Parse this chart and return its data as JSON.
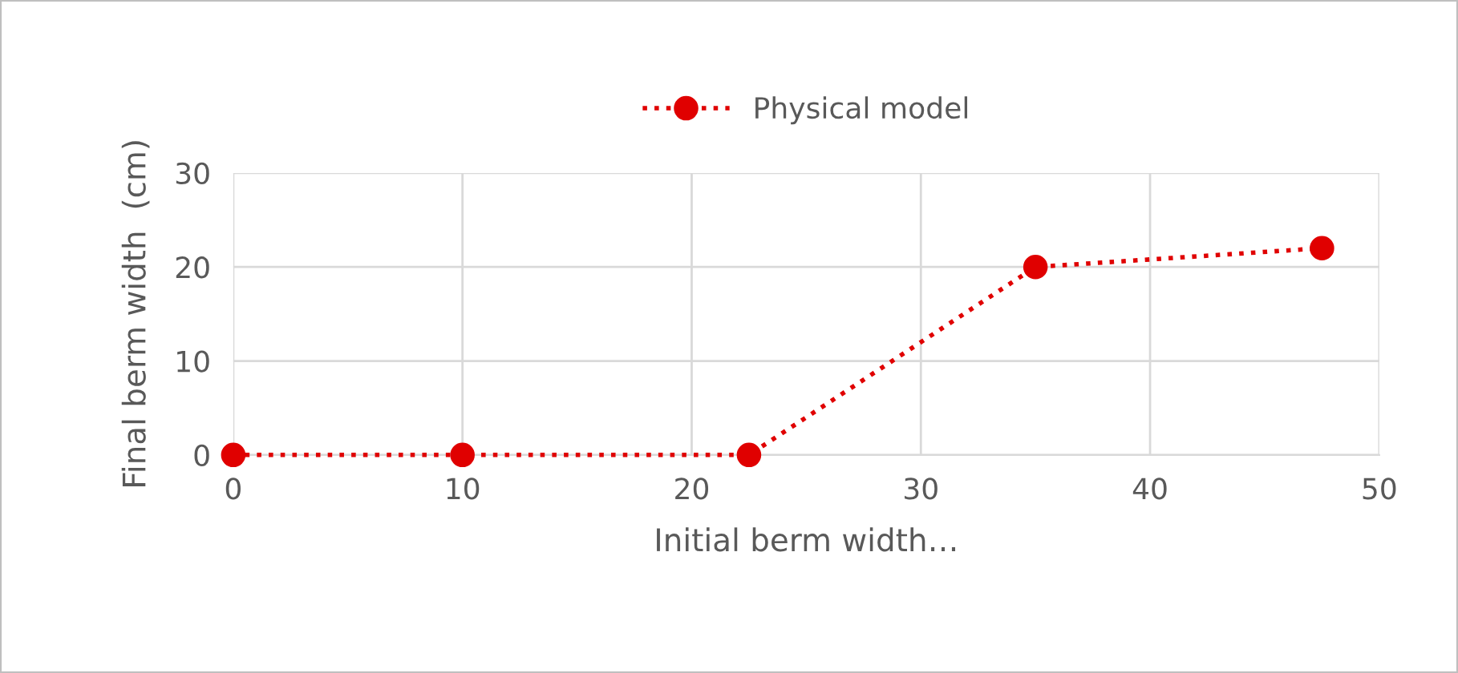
{
  "chart_data": {
    "type": "line",
    "xlabel": "Initial berm width…",
    "ylabel": "Final berm width  (cm)",
    "x": [
      0,
      10,
      22.5,
      35,
      47.5
    ],
    "series": [
      {
        "name": "Physical model",
        "color": "#e00000",
        "values": [
          0,
          0,
          0,
          20,
          22
        ]
      }
    ],
    "xlim": [
      0,
      50
    ],
    "xticks": [
      0,
      10,
      20,
      30,
      40,
      50
    ],
    "ylim": [
      0,
      30
    ],
    "yticks": [
      0,
      10,
      20,
      30
    ],
    "grid": true,
    "legend": "top",
    "marker": "circle",
    "line_style": "dotted"
  }
}
